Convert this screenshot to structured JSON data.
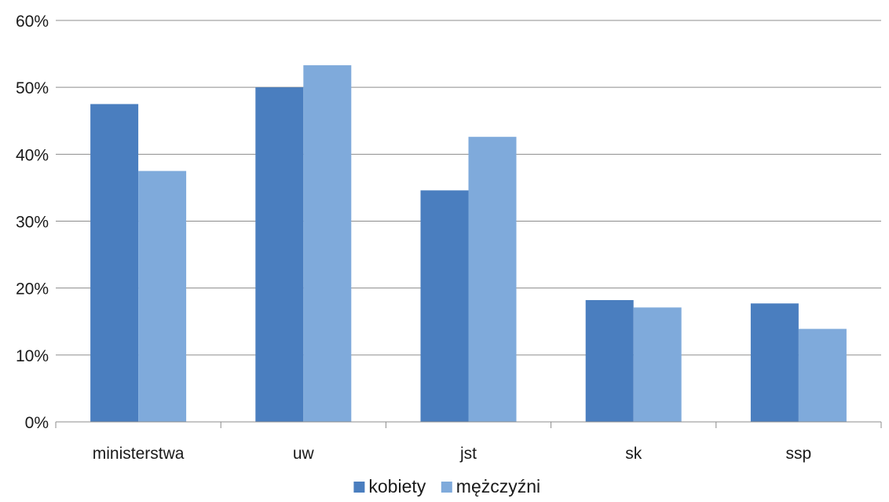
{
  "chart_data": {
    "type": "bar",
    "categories": [
      "ministerstwa",
      "uw",
      "jst",
      "sk",
      "ssp"
    ],
    "series": [
      {
        "name": "kobiety",
        "color": "#4a7ebf",
        "values": [
          47.5,
          50.0,
          34.6,
          18.2,
          17.7
        ]
      },
      {
        "name": "mężczyźni",
        "color": "#7faadb",
        "values": [
          37.5,
          53.3,
          42.6,
          17.1,
          13.9
        ]
      }
    ],
    "ylim": [
      0,
      60
    ],
    "yticks": [
      0,
      10,
      20,
      30,
      40,
      50,
      60
    ],
    "ytick_labels": [
      "0%",
      "10%",
      "20%",
      "30%",
      "40%",
      "50%",
      "60%"
    ],
    "title": "",
    "xlabel": "",
    "ylabel": "",
    "grid": true,
    "legend": "bottom-center"
  }
}
